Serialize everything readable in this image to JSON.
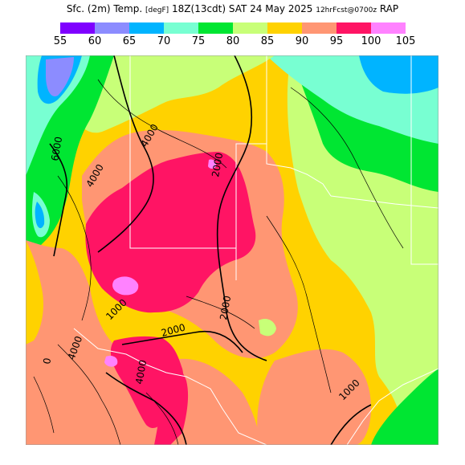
{
  "title": {
    "main": "Sfc. (2m) Temp.",
    "units": "[degF]",
    "valid": "18Z(13cdt) SAT 24 May 2025",
    "fcst": "12hrFcst@0700z",
    "model": "RAP"
  },
  "legend": {
    "ticks": [
      "55",
      "60",
      "65",
      "70",
      "75",
      "80",
      "85",
      "90",
      "95",
      "100",
      "105"
    ],
    "colors": [
      "#7f00ff",
      "#8c8cff",
      "#00b4ff",
      "#78ffd2",
      "#00e632",
      "#c8ff78",
      "#ffd200",
      "#ff9673",
      "#ff1464",
      "#ff82ff"
    ]
  },
  "contour_labels": [
    {
      "text": "6000",
      "name": "contour-label-6000"
    },
    {
      "text": "4000",
      "name": "contour-label-4000-north"
    },
    {
      "text": "4000",
      "name": "contour-label-4000-west"
    },
    {
      "text": "2000",
      "name": "contour-label-2000-central"
    },
    {
      "text": "2000",
      "name": "contour-label-2000-south"
    },
    {
      "text": "2000",
      "name": "contour-label-2000-southwest"
    },
    {
      "text": "4000",
      "name": "contour-label-4000-southwest"
    },
    {
      "text": "4000",
      "name": "contour-label-4000-south"
    },
    {
      "text": "1000",
      "name": "contour-label-1000-west"
    },
    {
      "text": "1000",
      "name": "contour-label-1000-east"
    },
    {
      "text": "0",
      "name": "contour-label-0-west"
    }
  ]
}
